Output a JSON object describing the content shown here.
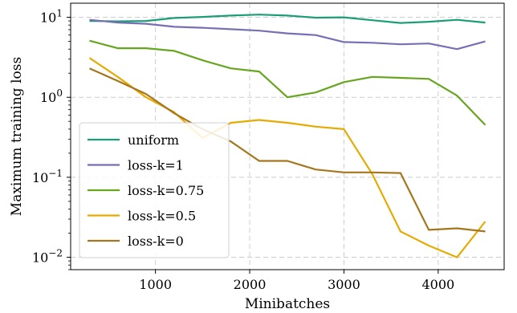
{
  "chart_data": {
    "type": "line",
    "title": "",
    "xlabel": "Minibatches",
    "ylabel": "Maximum training loss",
    "xlim": [
      100,
      4700
    ],
    "ylim": [
      0.007,
      15
    ],
    "yscale": "log",
    "grid": true,
    "legend_position": "lower-left",
    "x_ticks": [
      1000,
      2000,
      3000,
      4000
    ],
    "x_tick_labels": [
      "1000",
      "2000",
      "3000",
      "4000"
    ],
    "y_ticks": [
      0.01,
      0.1,
      1,
      10
    ],
    "y_tick_labels": [
      {
        "base": "10",
        "exp": "−2"
      },
      {
        "base": "10",
        "exp": "−1"
      },
      {
        "base": "10",
        "exp": "0"
      },
      {
        "base": "10",
        "exp": "1"
      }
    ],
    "x": [
      300,
      600,
      900,
      1200,
      1500,
      1800,
      2100,
      2400,
      2700,
      3000,
      3300,
      3600,
      3900,
      4200,
      4500
    ],
    "series": [
      {
        "name": "uniform",
        "color": "#1b9e77",
        "values": [
          9.0,
          8.9,
          9.0,
          9.8,
          10.1,
          10.5,
          10.8,
          10.5,
          9.9,
          10.0,
          9.2,
          8.5,
          8.8,
          9.3,
          8.6
        ]
      },
      {
        "name": "loss-k=1",
        "color": "#7570b3",
        "values": [
          9.3,
          8.6,
          8.3,
          7.6,
          7.4,
          7.1,
          6.8,
          6.3,
          6.0,
          4.9,
          4.8,
          4.6,
          4.7,
          4.0,
          5.0
        ]
      },
      {
        "name": "loss-k=0.75",
        "color": "#66a61e",
        "values": [
          5.1,
          4.1,
          4.1,
          3.8,
          2.9,
          2.3,
          2.1,
          1.0,
          1.15,
          1.55,
          1.8,
          1.75,
          1.7,
          1.05,
          0.45
        ]
      },
      {
        "name": "loss-k=0.5",
        "color": "#e6ab02",
        "values": [
          3.1,
          1.8,
          1.0,
          0.65,
          0.31,
          0.48,
          0.52,
          0.48,
          0.43,
          0.4,
          0.11,
          0.021,
          0.014,
          0.01,
          0.028
        ]
      },
      {
        "name": "loss-k=0",
        "color": "#a6761d",
        "values": [
          2.3,
          1.6,
          1.1,
          0.63,
          0.4,
          0.28,
          0.16,
          0.16,
          0.125,
          0.115,
          0.115,
          0.113,
          0.022,
          0.023,
          0.021
        ]
      }
    ]
  }
}
